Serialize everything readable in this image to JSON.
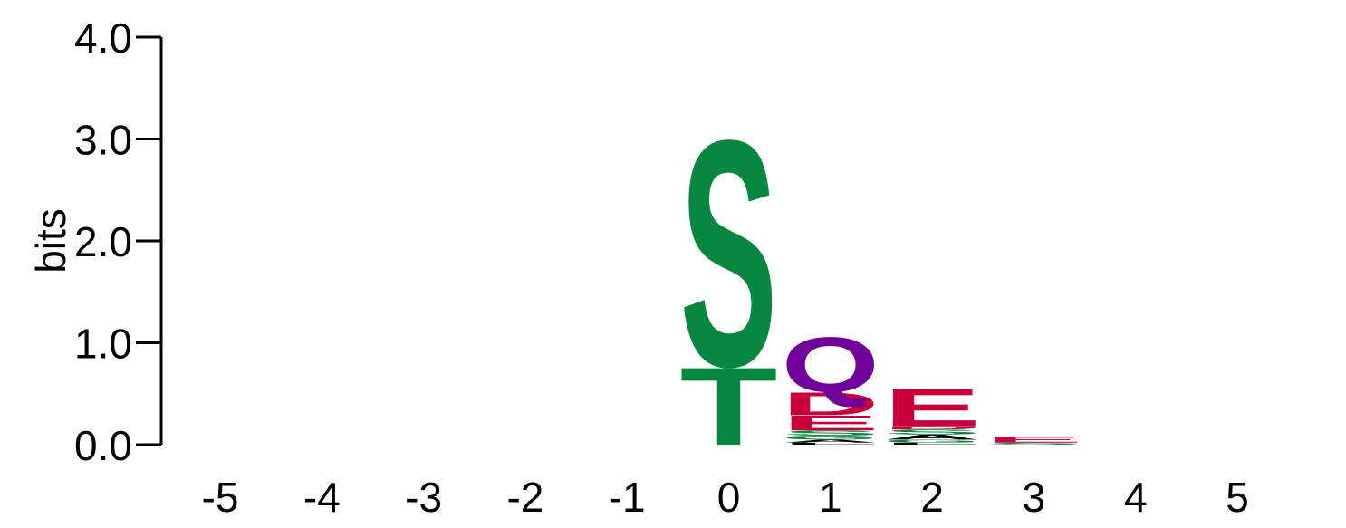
{
  "chart_data": {
    "type": "sequence-logo",
    "ylabel": "bits",
    "ylim": [
      0,
      4
    ],
    "yticks": [
      "0.0",
      "1.0",
      "2.0",
      "3.0",
      "4.0"
    ],
    "positions": [
      "-5",
      "-4",
      "-3",
      "-2",
      "-1",
      "0",
      "1",
      "2",
      "3",
      "4",
      "5"
    ],
    "colors": {
      "polar": "#07873f",
      "acidic": "#c8003c",
      "amide": "#700099",
      "hydrophobic": "#000000"
    },
    "stacks": [
      {
        "position": "0",
        "letters": [
          {
            "letter": "T",
            "bits": 0.78,
            "group": "polar"
          },
          {
            "letter": "S",
            "bits": 2.27,
            "group": "polar"
          }
        ]
      },
      {
        "position": "1",
        "letters": [
          {
            "letter": "L",
            "bits": 0.02,
            "group": "hydrophobic"
          },
          {
            "letter": "A",
            "bits": 0.03,
            "group": "hydrophobic"
          },
          {
            "letter": "G",
            "bits": 0.04,
            "group": "polar"
          },
          {
            "letter": "S",
            "bits": 0.05,
            "group": "polar"
          },
          {
            "letter": "E",
            "bits": 0.15,
            "group": "acidic"
          },
          {
            "letter": "D",
            "bits": 0.23,
            "group": "acidic"
          },
          {
            "letter": "Q",
            "bits": 0.55,
            "group": "amide"
          }
        ]
      },
      {
        "position": "2",
        "letters": [
          {
            "letter": "L",
            "bits": 0.02,
            "group": "hydrophobic"
          },
          {
            "letter": "G",
            "bits": 0.03,
            "group": "polar"
          },
          {
            "letter": "A",
            "bits": 0.05,
            "group": "hydrophobic"
          },
          {
            "letter": "S",
            "bits": 0.05,
            "group": "polar"
          },
          {
            "letter": "D",
            "bits": 0.03,
            "group": "acidic"
          },
          {
            "letter": "E",
            "bits": 0.38,
            "group": "acidic"
          }
        ]
      },
      {
        "position": "3",
        "letters": [
          {
            "letter": "S",
            "bits": 0.02,
            "group": "polar"
          },
          {
            "letter": "E",
            "bits": 0.06,
            "group": "acidic"
          }
        ]
      }
    ]
  }
}
